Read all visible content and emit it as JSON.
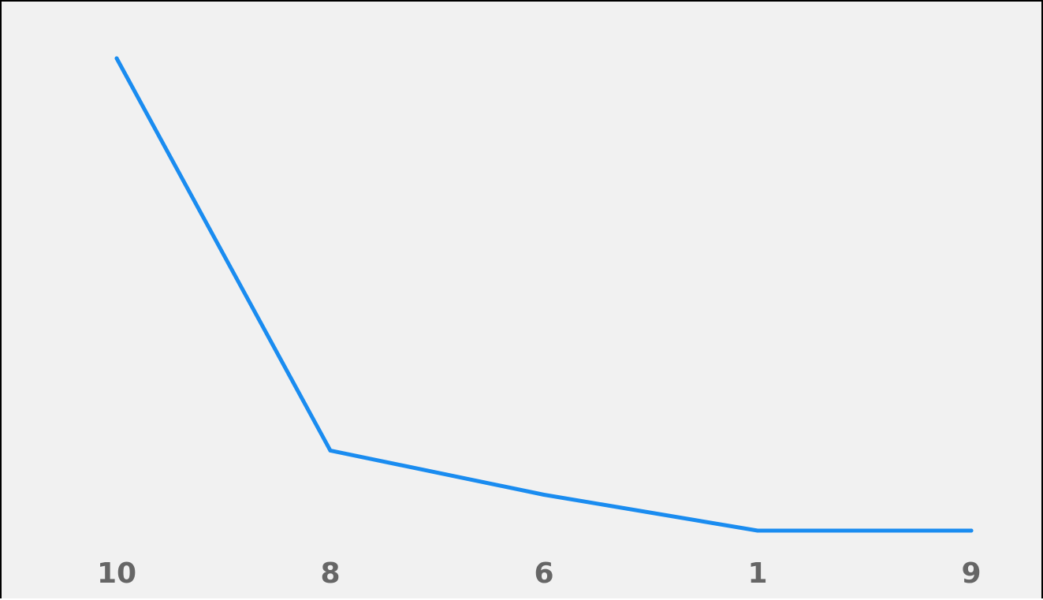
{
  "chart_data": {
    "type": "line",
    "categories": [
      "10",
      "8",
      "6",
      "1",
      "9"
    ],
    "series": [
      {
        "values": [
          100,
          29,
          21,
          14.5,
          14.5
        ],
        "color": "#1a8cf0"
      }
    ],
    "title": "",
    "xlabel": "",
    "ylabel": "",
    "ylim": [
      0,
      110
    ],
    "grid": false,
    "legend": "none"
  }
}
